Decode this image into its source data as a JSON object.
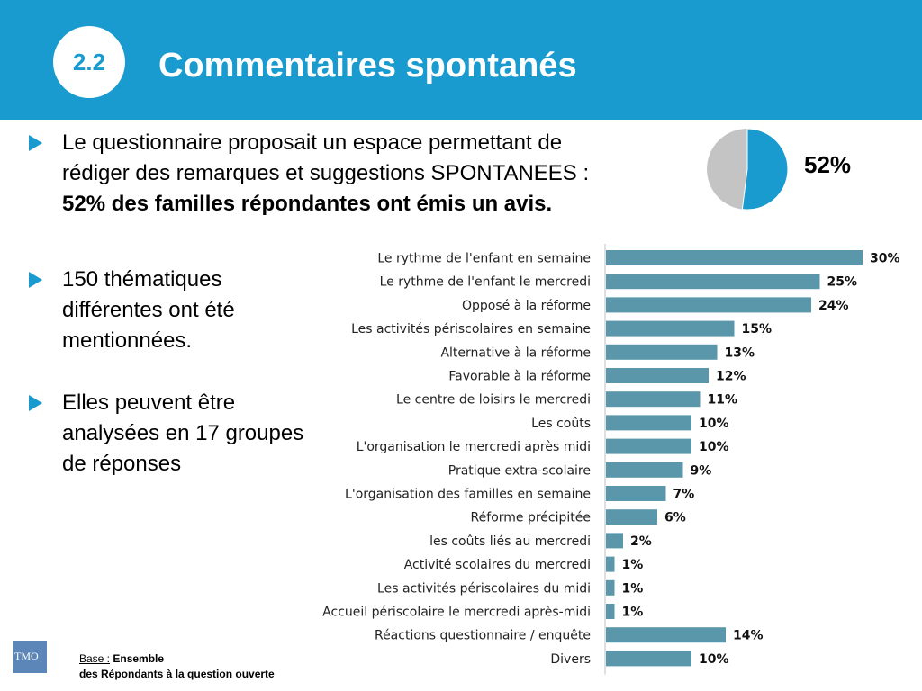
{
  "header": {
    "number": "2.2",
    "title": "Commentaires spontanés"
  },
  "bullets": [
    {
      "line1": "Le questionnaire proposait un espace permettant de",
      "line2": "rédiger des remarques et suggestions SPONTANEES :",
      "line3_bold": "52% des familles répondantes ont émis un  avis."
    },
    {
      "text": "150 thématiques différentes ont été mentionnées."
    },
    {
      "text": "Elles peuvent être analysées en 17 groupes de réponses"
    }
  ],
  "pie": {
    "value": 52,
    "label": "52%",
    "colors": {
      "main": "#1a9bd0",
      "rest": "#c4c4c4"
    }
  },
  "chart_data": {
    "type": "bar",
    "orientation": "horizontal",
    "categories": [
      "Le rythme de l'enfant en semaine",
      "Le rythme de l'enfant le mercredi",
      "Opposé à la réforme",
      "Les activités périscolaires en semaine",
      "Alternative à la réforme",
      "Favorable à la réforme",
      "Le centre de loisirs le mercredi",
      "Les coûts",
      "L'organisation le mercredi après midi",
      "Pratique extra-scolaire",
      "L'organisation des familles en semaine",
      "Réforme précipitée",
      "les coûts liés au mercredi",
      "Activité scolaires du mercredi",
      "Les activités périscolaires du midi",
      "Accueil périscolaire le mercredi après-midi",
      "Réactions questionnaire / enquête",
      "Divers"
    ],
    "values": [
      30,
      25,
      24,
      15,
      13,
      12,
      11,
      10,
      10,
      9,
      7,
      6,
      2,
      1,
      1,
      1,
      14,
      10
    ],
    "value_labels": [
      "30%",
      "25%",
      "24%",
      "15%",
      "13%",
      "12%",
      "11%",
      "10%",
      "10%",
      "9%",
      "7%",
      "6%",
      "2%",
      "1%",
      "1%",
      "1%",
      "14%",
      "10%"
    ],
    "xlim": [
      0,
      30
    ],
    "bar_color": "#5b97ab",
    "title": "",
    "xlabel": "",
    "ylabel": ""
  },
  "footer": {
    "logo_text": "TMO",
    "base_label": "Base :",
    "base_line1": " Ensemble",
    "base_line2": "des Répondants à la question ouverte"
  }
}
